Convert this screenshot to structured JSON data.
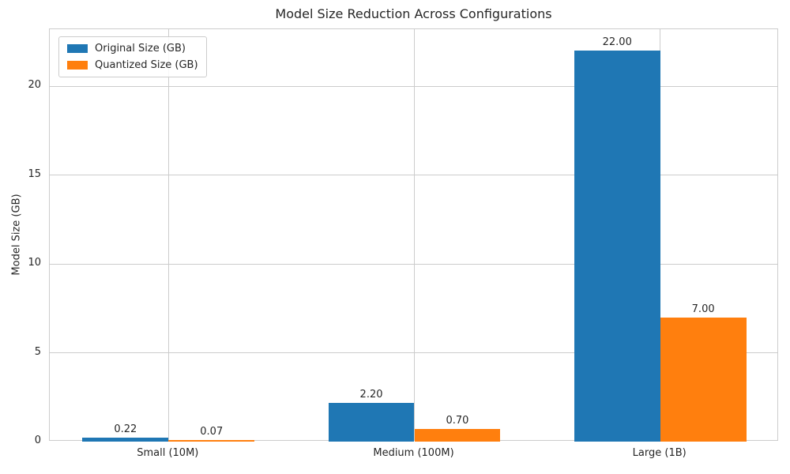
{
  "chart_data": {
    "type": "bar",
    "title": "Model Size Reduction Across Configurations",
    "xlabel": "",
    "ylabel": "Model Size (GB)",
    "categories": [
      "Small (10M)",
      "Medium (100M)",
      "Large (1B)"
    ],
    "series": [
      {
        "name": "Original Size (GB)",
        "color": "#1f77b4",
        "values": [
          0.22,
          2.2,
          22.0
        ],
        "value_labels": [
          "0.22",
          "2.20",
          "22.00"
        ]
      },
      {
        "name": "Quantized Size (GB)",
        "color": "#ff7f0e",
        "values": [
          0.07,
          0.7,
          7.0
        ],
        "value_labels": [
          "0.07",
          "0.70",
          "7.00"
        ]
      }
    ],
    "yticks": [
      0,
      5,
      10,
      15,
      20
    ],
    "ytick_labels": [
      "0",
      "5",
      "10",
      "15",
      "20"
    ],
    "ylim": [
      0,
      23.2
    ],
    "grid": true,
    "legend_position": "upper-left",
    "colors": {
      "grid": "#cccccc",
      "spine": "#cccccc",
      "text": "#262626",
      "background": "#ffffff"
    }
  }
}
